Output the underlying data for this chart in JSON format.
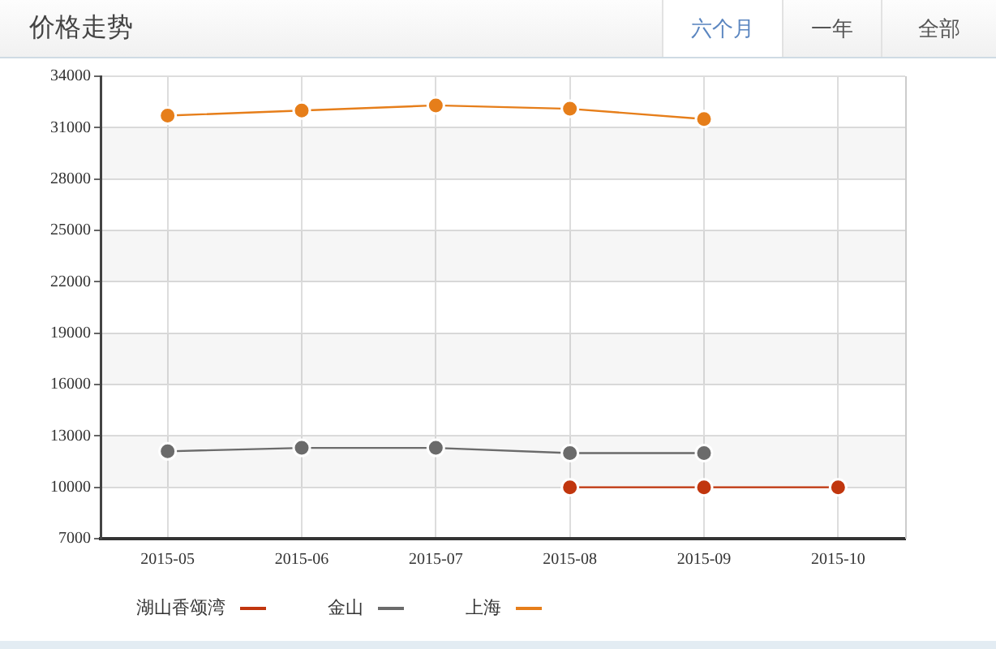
{
  "chart_data": {
    "type": "line",
    "title": "价格走势",
    "annotations": [
      "六个月",
      "一年",
      "全部"
    ],
    "categories": [
      "2015-05",
      "2015-06",
      "2015-07",
      "2015-08",
      "2015-09",
      "2015-10"
    ],
    "series": [
      {
        "name": "湖山香颂湾",
        "color": "#c1360e",
        "values": [
          null,
          null,
          null,
          10000,
          10000,
          10000
        ]
      },
      {
        "name": "金山",
        "color": "#6b6b6b",
        "values": [
          12100,
          12300,
          12300,
          12000,
          12000,
          null
        ]
      },
      {
        "name": "上海",
        "color": "#e67e1a",
        "values": [
          31700,
          32000,
          32300,
          32100,
          31500,
          null
        ]
      }
    ],
    "ylim": [
      7000,
      34000
    ],
    "yticks": [
      7000,
      10000,
      13000,
      16000,
      19000,
      22000,
      25000,
      28000,
      31000,
      34000
    ],
    "grid": true,
    "legend": "bottom",
    "marker": "circle",
    "line_style": "solid"
  }
}
